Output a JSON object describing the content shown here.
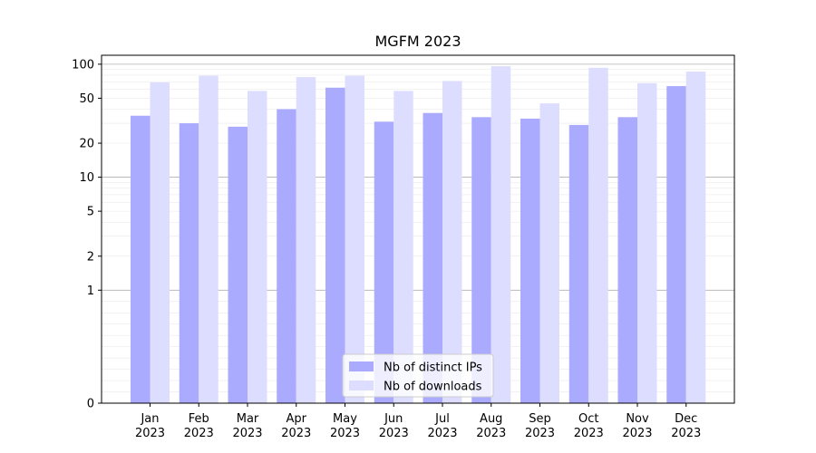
{
  "chart_data": {
    "type": "bar",
    "title": "MGFM 2023",
    "xlabel": "",
    "ylabel": "",
    "categories": [
      [
        "Jan",
        "2023"
      ],
      [
        "Feb",
        "2023"
      ],
      [
        "Mar",
        "2023"
      ],
      [
        "Apr",
        "2023"
      ],
      [
        "May",
        "2023"
      ],
      [
        "Jun",
        "2023"
      ],
      [
        "Jul",
        "2023"
      ],
      [
        "Aug",
        "2023"
      ],
      [
        "Sep",
        "2023"
      ],
      [
        "Oct",
        "2023"
      ],
      [
        "Nov",
        "2023"
      ],
      [
        "Dec",
        "2023"
      ]
    ],
    "series": [
      {
        "name": "Nb of distinct IPs",
        "color": "#aaaaff",
        "values": [
          35,
          30,
          28,
          40,
          62,
          31,
          37,
          34,
          33,
          29,
          34,
          64
        ]
      },
      {
        "name": "Nb of downloads",
        "color": "#ddddff",
        "values": [
          69,
          79,
          58,
          77,
          79,
          58,
          71,
          96,
          45,
          93,
          68,
          86
        ]
      }
    ],
    "yscale": "symlog",
    "ylim": [
      0,
      120
    ],
    "yticks": [
      0,
      1,
      2,
      5,
      10,
      20,
      50,
      100
    ],
    "ytick_labels": [
      "0",
      "1",
      "2",
      "5",
      "10",
      "20",
      "50",
      "100"
    ],
    "grid": true,
    "legend_position": "bottom-center"
  }
}
